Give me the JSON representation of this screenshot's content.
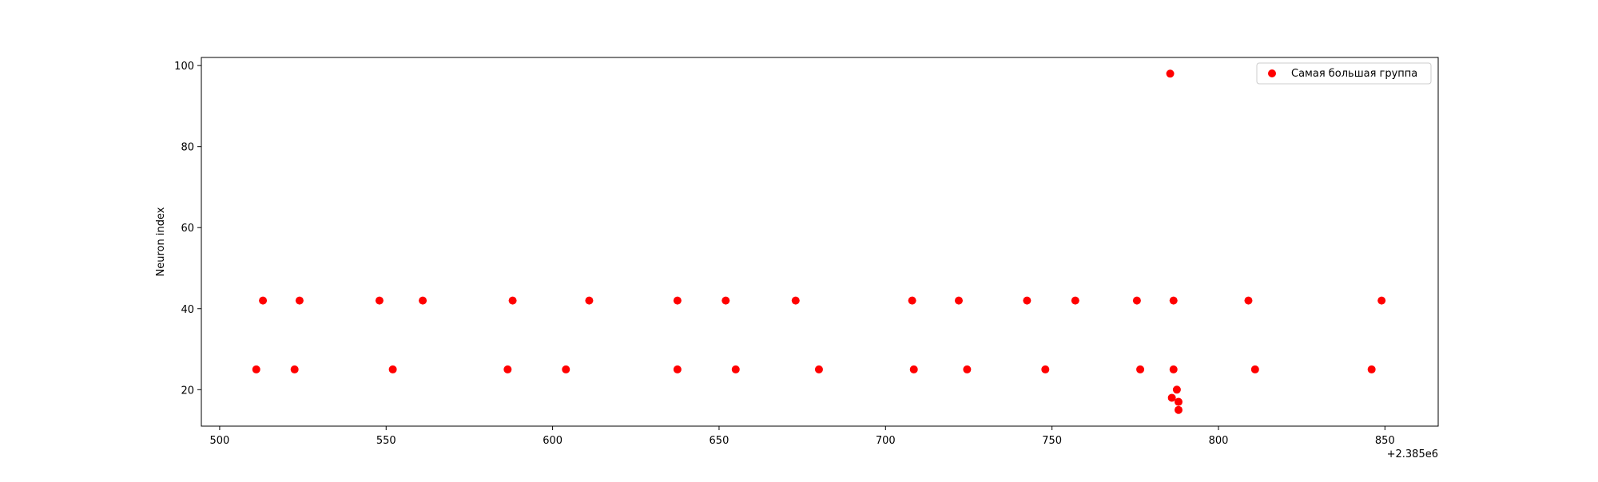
{
  "chart_data": {
    "type": "scatter",
    "title": "",
    "xlabel": "",
    "ylabel": "Neuron index",
    "x_offset_text": "+2.385e6",
    "xlim": [
      494.5,
      866
    ],
    "ylim": [
      11,
      102
    ],
    "xticks": [
      500,
      550,
      600,
      650,
      700,
      750,
      800,
      850
    ],
    "yticks": [
      20,
      40,
      60,
      80,
      100
    ],
    "grid": false,
    "legend_position": "upper right",
    "series": [
      {
        "name": "Самая большая группа",
        "color": "#ff0000",
        "points": [
          {
            "x": 511,
            "y": 25
          },
          {
            "x": 513,
            "y": 42
          },
          {
            "x": 522.5,
            "y": 25
          },
          {
            "x": 524,
            "y": 42
          },
          {
            "x": 548,
            "y": 42
          },
          {
            "x": 552,
            "y": 25
          },
          {
            "x": 561,
            "y": 42
          },
          {
            "x": 586.5,
            "y": 25
          },
          {
            "x": 588,
            "y": 42
          },
          {
            "x": 604,
            "y": 25
          },
          {
            "x": 611,
            "y": 42
          },
          {
            "x": 637.5,
            "y": 42
          },
          {
            "x": 637.5,
            "y": 25
          },
          {
            "x": 652,
            "y": 42
          },
          {
            "x": 655,
            "y": 25
          },
          {
            "x": 673,
            "y": 42
          },
          {
            "x": 680,
            "y": 25
          },
          {
            "x": 708,
            "y": 42
          },
          {
            "x": 708.5,
            "y": 25
          },
          {
            "x": 722,
            "y": 42
          },
          {
            "x": 724.5,
            "y": 25
          },
          {
            "x": 742.5,
            "y": 42
          },
          {
            "x": 748,
            "y": 25
          },
          {
            "x": 757,
            "y": 42
          },
          {
            "x": 775.5,
            "y": 42
          },
          {
            "x": 776.5,
            "y": 25
          },
          {
            "x": 785.5,
            "y": 98
          },
          {
            "x": 786,
            "y": 18
          },
          {
            "x": 786.5,
            "y": 42
          },
          {
            "x": 786.5,
            "y": 25
          },
          {
            "x": 787.5,
            "y": 20
          },
          {
            "x": 788,
            "y": 17
          },
          {
            "x": 788,
            "y": 15
          },
          {
            "x": 809,
            "y": 42
          },
          {
            "x": 811,
            "y": 25
          },
          {
            "x": 846,
            "y": 25
          },
          {
            "x": 849,
            "y": 42
          }
        ]
      }
    ]
  }
}
